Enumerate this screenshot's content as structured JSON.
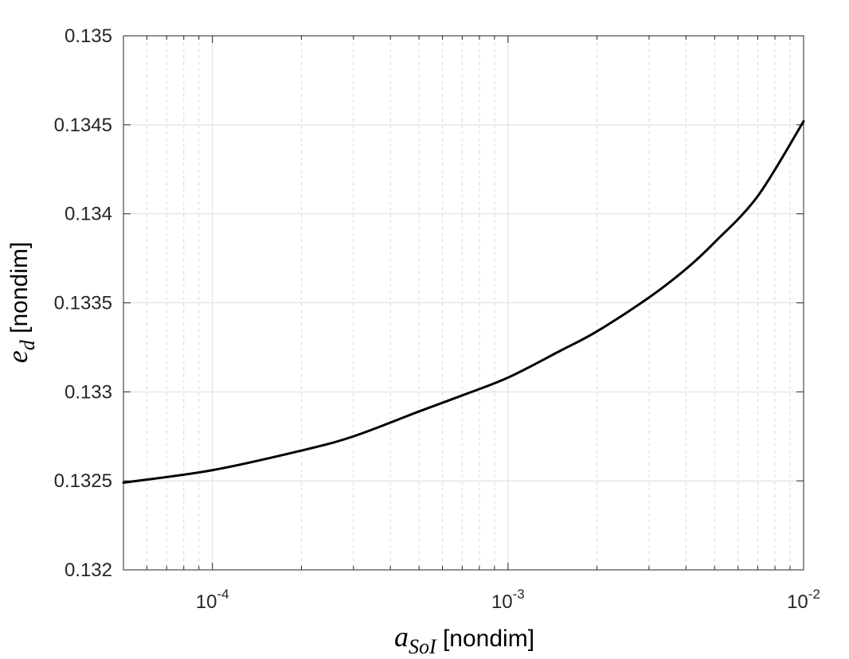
{
  "chart_data": {
    "type": "line",
    "xscale": "log",
    "xlim": [
      5e-05,
      0.01
    ],
    "ylim": [
      0.132,
      0.135
    ],
    "xticks": [
      {
        "value": 0.0001,
        "base": "10",
        "exp": "-4"
      },
      {
        "value": 0.001,
        "base": "10",
        "exp": "-3"
      },
      {
        "value": 0.01,
        "base": "10",
        "exp": "-2"
      }
    ],
    "yticks": [
      {
        "value": 0.132,
        "label": "0.132"
      },
      {
        "value": 0.1325,
        "label": "0.1325"
      },
      {
        "value": 0.133,
        "label": "0.133"
      },
      {
        "value": 0.1335,
        "label": "0.1335"
      },
      {
        "value": 0.134,
        "label": "0.134"
      },
      {
        "value": 0.1345,
        "label": "0.1345"
      },
      {
        "value": 0.135,
        "label": "0.135"
      }
    ],
    "xlabel": {
      "symbol": "a",
      "subscript": "SoI",
      "units": " [nondim]"
    },
    "ylabel": {
      "symbol": "e",
      "subscript": "d",
      "units": " [nondim]"
    },
    "grid": true,
    "minor_grid": true,
    "series": [
      {
        "color": "#000000",
        "x": [
          5e-05,
          0.0001,
          0.0002,
          0.0003,
          0.0005,
          0.0007,
          0.001,
          0.0015,
          0.002,
          0.003,
          0.004,
          0.005,
          0.007,
          0.01
        ],
        "y": [
          0.13249,
          0.13256,
          0.13267,
          0.13275,
          0.13289,
          0.13298,
          0.13308,
          0.13323,
          0.13334,
          0.13353,
          0.13369,
          0.13384,
          0.1341,
          0.13452
        ]
      }
    ]
  }
}
